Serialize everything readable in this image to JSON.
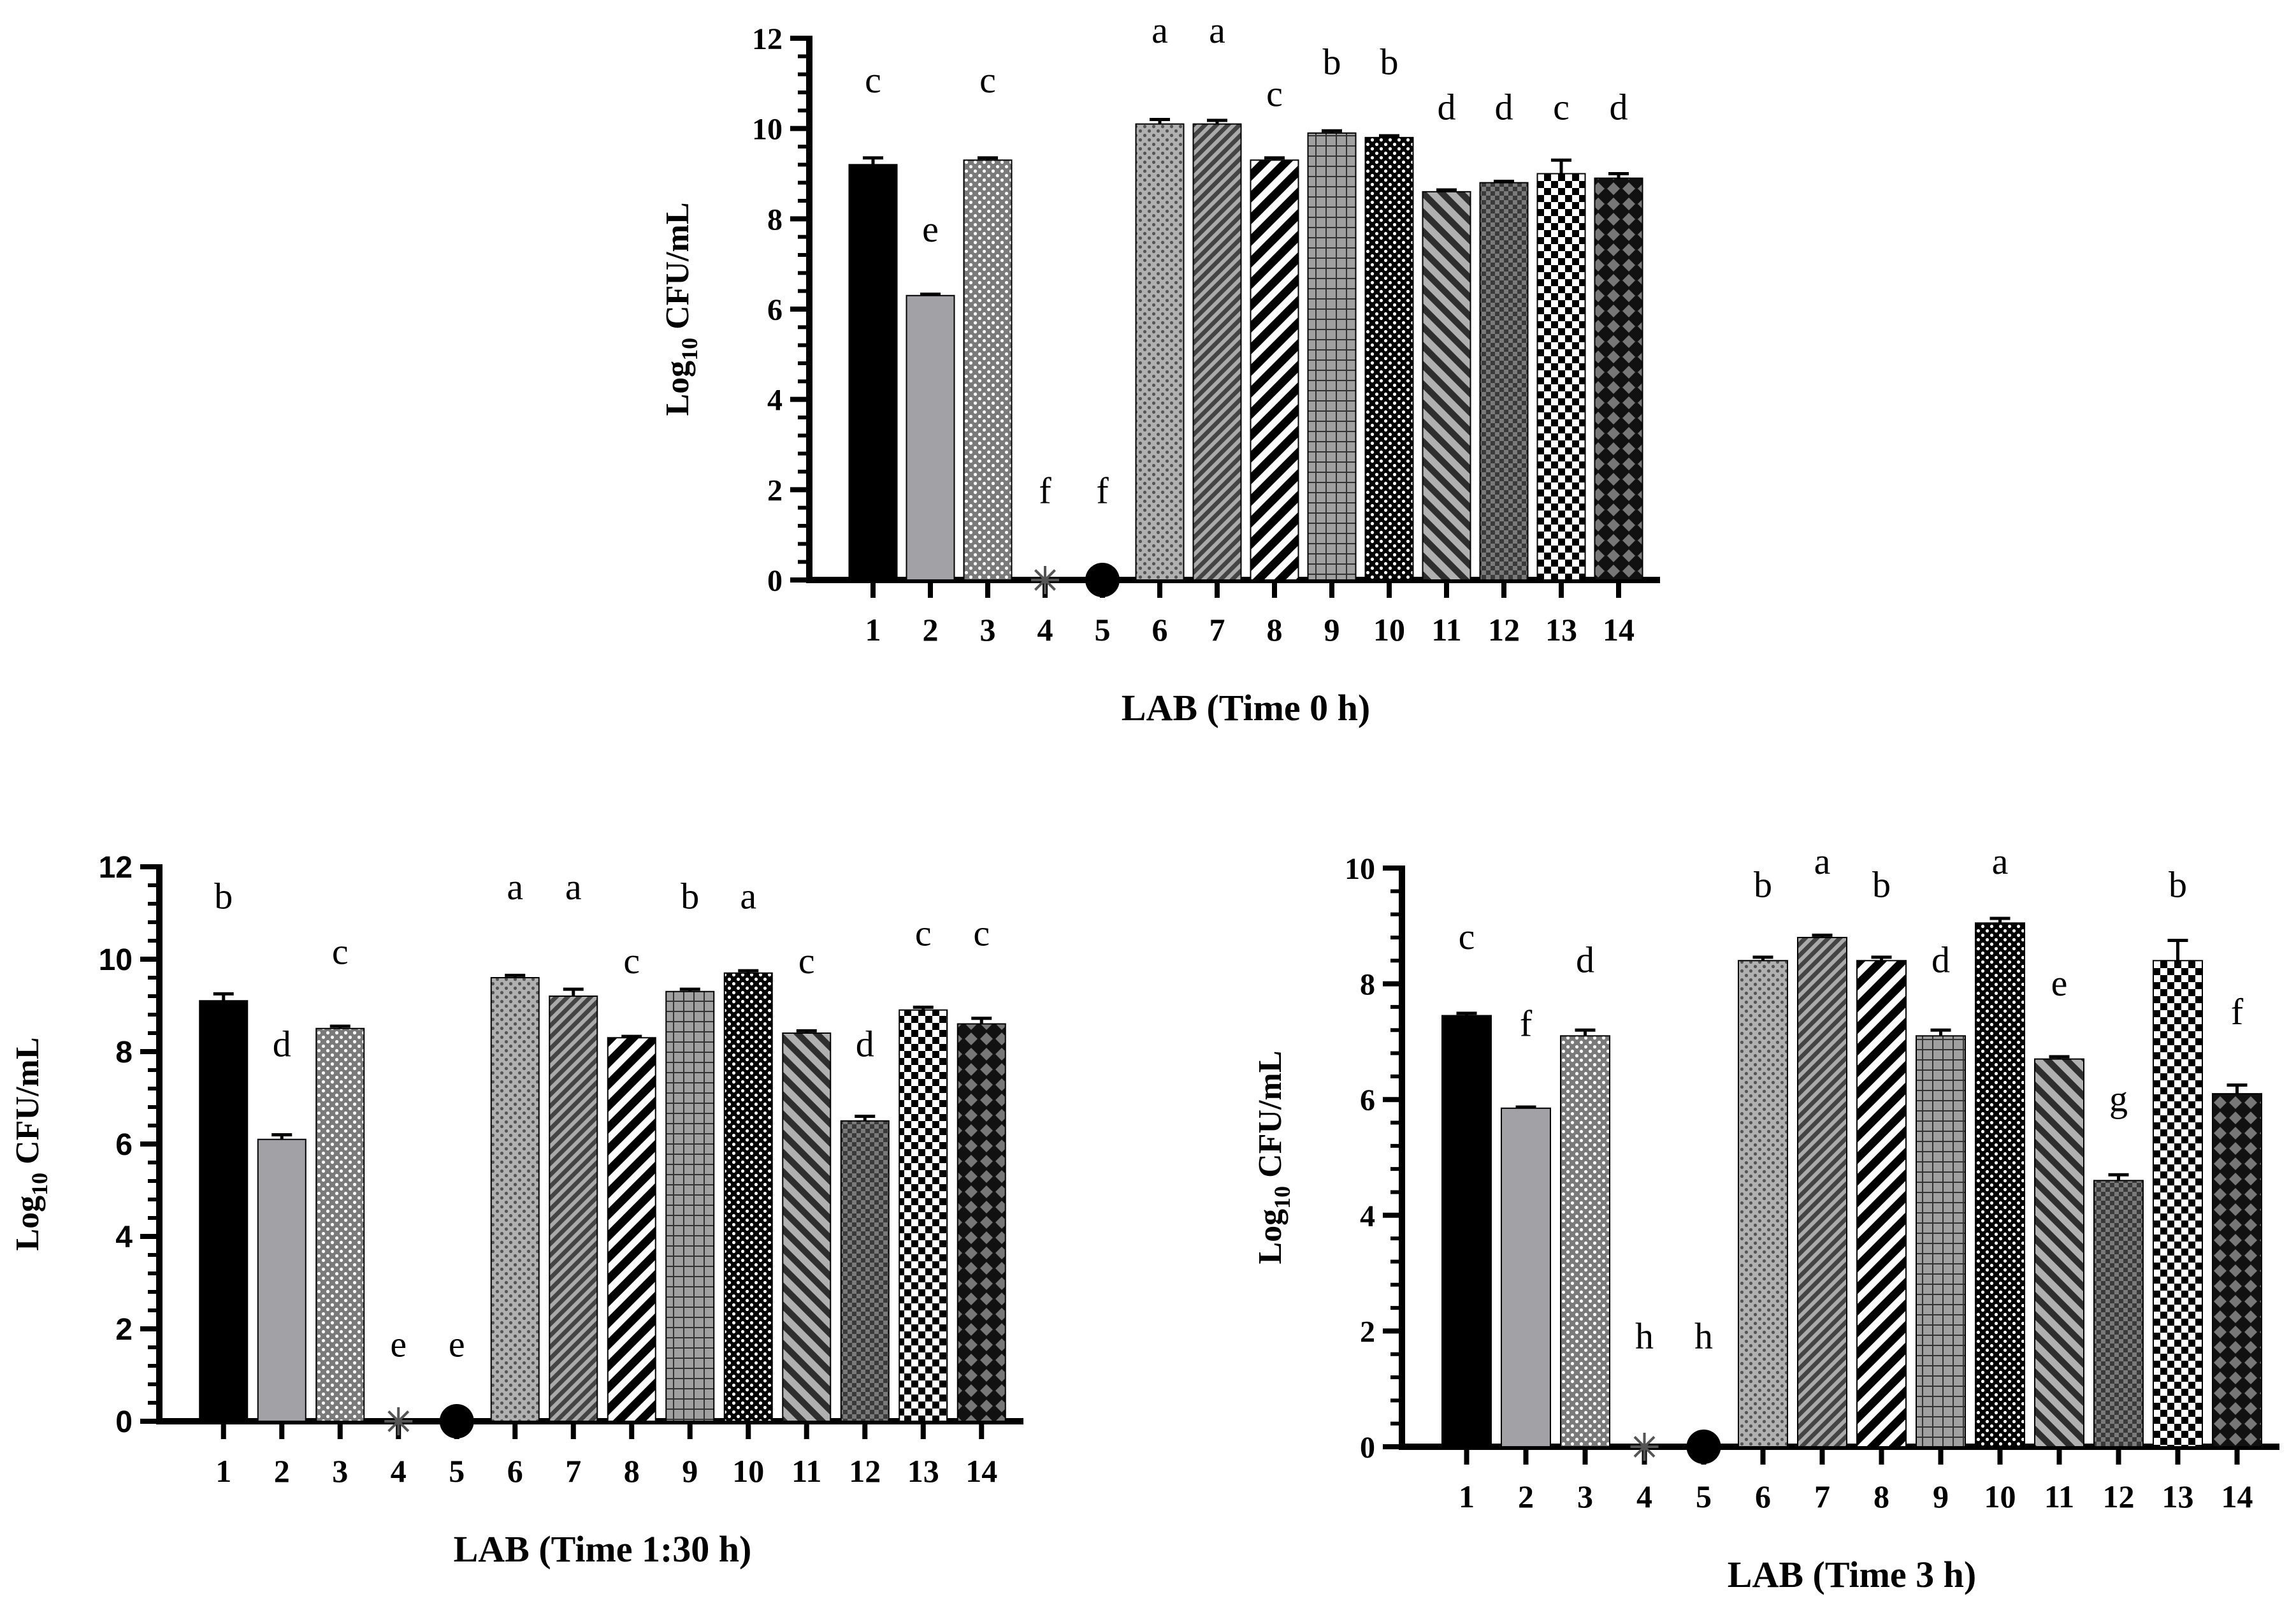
{
  "chart_data": [
    {
      "type": "bar",
      "title": "",
      "xlabel": "LAB (Time 0 h)",
      "ylabel_main": "Log",
      "ylabel_sub": "10",
      "ylabel_rest": " CFU/mL",
      "ylim": [
        0,
        12
      ],
      "yticks": [
        "0",
        "2",
        "4",
        "6",
        "8",
        "10",
        "12"
      ],
      "categories": [
        "1",
        "2",
        "3",
        "4",
        "5",
        "6",
        "7",
        "8",
        "9",
        "10",
        "11",
        "12",
        "13",
        "14"
      ],
      "values": [
        9.2,
        6.3,
        9.3,
        0,
        0,
        10.1,
        10.1,
        9.3,
        9.9,
        9.8,
        8.6,
        8.8,
        9.0,
        8.9
      ],
      "errors": [
        0.15,
        0.03,
        0.05,
        0,
        0,
        0.1,
        0.08,
        0.05,
        0.05,
        0.04,
        0.04,
        0.03,
        0.3,
        0.1
      ],
      "letters": [
        "c",
        "e",
        "c",
        "f",
        "f",
        "a",
        "a",
        "c",
        "b",
        "b",
        "d",
        "d",
        "c",
        "d"
      ],
      "letter_positions": [
        10.8,
        7.5,
        10.8,
        1.7,
        1.7,
        11.9,
        11.9,
        10.5,
        11.2,
        11.2,
        10.2,
        10.2,
        10.2,
        10.2
      ]
    },
    {
      "type": "bar",
      "title": "",
      "xlabel": "LAB (Time 1:30 h)",
      "ylabel_main": "Log",
      "ylabel_sub": "10",
      "ylabel_rest": " CFU/mL",
      "ylim": [
        0,
        12
      ],
      "yticks": [
        "0",
        "2",
        "4",
        "6",
        "8",
        "10",
        "12"
      ],
      "categories": [
        "1",
        "2",
        "3",
        "4",
        "5",
        "6",
        "7",
        "8",
        "9",
        "10",
        "11",
        "12",
        "13",
        "14"
      ],
      "values": [
        9.1,
        6.1,
        8.5,
        0,
        0,
        9.6,
        9.2,
        8.3,
        9.3,
        9.7,
        8.4,
        6.5,
        8.9,
        8.6
      ],
      "errors": [
        0.15,
        0.1,
        0.05,
        0,
        0,
        0.05,
        0.15,
        0.03,
        0.05,
        0.05,
        0.05,
        0.1,
        0.06,
        0.12
      ],
      "letters": [
        "b",
        "d",
        "c",
        "e",
        "e",
        "a",
        "a",
        "c",
        "b",
        "a",
        "c",
        "d",
        "c",
        "c"
      ],
      "letter_positions": [
        11.1,
        7.9,
        9.9,
        1.4,
        1.4,
        11.3,
        11.3,
        9.7,
        11.1,
        11.1,
        9.7,
        7.9,
        10.3,
        10.3
      ]
    },
    {
      "type": "bar",
      "title": "",
      "xlabel": "LAB (Time 3 h)",
      "ylabel_main": "Log",
      "ylabel_sub": "10",
      "ylabel_rest": " CFU/mL",
      "ylim": [
        0,
        10
      ],
      "yticks": [
        "0",
        "2",
        "4",
        "6",
        "8",
        "10"
      ],
      "categories": [
        "1",
        "2",
        "3",
        "4",
        "5",
        "6",
        "7",
        "8",
        "9",
        "10",
        "11",
        "12",
        "13",
        "14"
      ],
      "values": [
        7.45,
        5.85,
        7.1,
        0,
        0,
        8.4,
        8.8,
        8.4,
        7.1,
        9.05,
        6.7,
        4.6,
        8.4,
        6.1
      ],
      "errors": [
        0.04,
        0.02,
        0.1,
        0,
        0,
        0.06,
        0.04,
        0.06,
        0.1,
        0.08,
        0.04,
        0.1,
        0.35,
        0.15
      ],
      "letters": [
        "c",
        "f",
        "d",
        "h",
        "h",
        "b",
        "a",
        "b",
        "d",
        "a",
        "e",
        "g",
        "b",
        "f"
      ],
      "letter_positions": [
        8.6,
        7.1,
        8.2,
        1.7,
        1.7,
        9.5,
        9.9,
        9.5,
        8.2,
        9.9,
        7.8,
        5.8,
        9.5,
        7.3
      ]
    }
  ]
}
